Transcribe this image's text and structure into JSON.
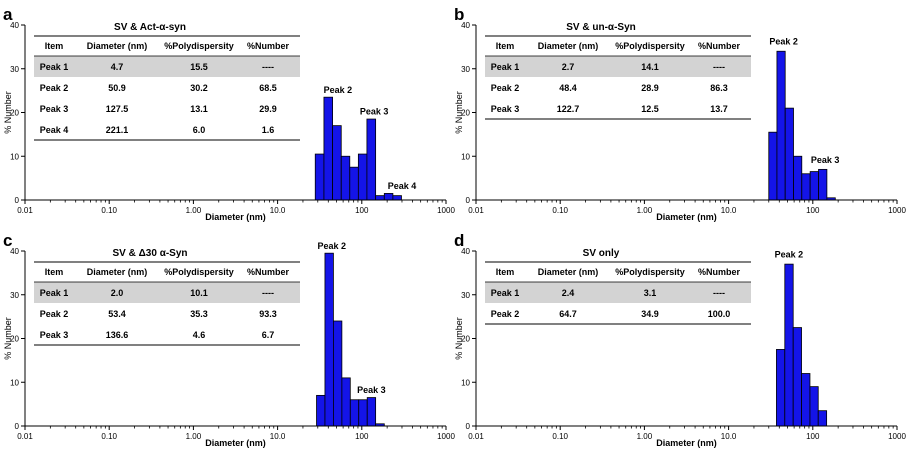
{
  "figure": {
    "axis": {
      "xlabel": "Diameter (nm)",
      "ylabel": "% Number",
      "xscale": "log",
      "xlim": [
        0.01,
        1000
      ],
      "ylim": [
        0,
        40
      ],
      "x_ticks": [
        "0.01",
        "0.10",
        "1.00",
        "10.0",
        "100",
        "1000"
      ],
      "y_ticks": [
        "0",
        "10",
        "20",
        "30",
        "40"
      ]
    },
    "colors": {
      "bar_fill": "#1414e8",
      "bar_stroke": "#000000",
      "table_header_row": "#d3d3d3",
      "axis": "#000000"
    }
  },
  "chart_data": [
    {
      "panel": "a",
      "type": "bar",
      "title": "SV & Act-α-syn",
      "xlabel": "Diameter (nm)",
      "ylabel": "% Number",
      "xscale": "log",
      "xlim": [
        0.01,
        1000
      ],
      "ylim": [
        0,
        40
      ],
      "bins": [
        {
          "x0": 28.0,
          "x1": 35.5,
          "y": 10.5
        },
        {
          "x0": 35.5,
          "x1": 45.0,
          "y": 23.5
        },
        {
          "x0": 45.0,
          "x1": 57.0,
          "y": 17.0
        },
        {
          "x0": 57.0,
          "x1": 72.0,
          "y": 10.0
        },
        {
          "x0": 72.0,
          "x1": 91.0,
          "y": 7.5
        },
        {
          "x0": 91.0,
          "x1": 115.0,
          "y": 10.5
        },
        {
          "x0": 115.0,
          "x1": 146.0,
          "y": 18.5
        },
        {
          "x0": 146.0,
          "x1": 185.0,
          "y": 1.0
        },
        {
          "x0": 185.0,
          "x1": 234.0,
          "y": 1.5
        },
        {
          "x0": 234.0,
          "x1": 296.0,
          "y": 1.0
        }
      ],
      "annotations": [
        {
          "text": "Peak 2",
          "x": 52,
          "y": 24.5
        },
        {
          "text": "Peak 3",
          "x": 140,
          "y": 19.5
        },
        {
          "text": "Peak 4",
          "x": 300,
          "y": 2.5
        }
      ],
      "table": {
        "headers": [
          "Item",
          "Diameter (nm)",
          "%Polydispersity",
          "%Number"
        ],
        "rows": [
          [
            "Peak 1",
            "4.7",
            "15.5",
            "----"
          ],
          [
            "Peak 2",
            "50.9",
            "30.2",
            "68.5"
          ],
          [
            "Peak 3",
            "127.5",
            "13.1",
            "29.9"
          ],
          [
            "Peak 4",
            "221.1",
            "6.0",
            "1.6"
          ]
        ]
      }
    },
    {
      "panel": "b",
      "type": "bar",
      "title": "SV & un-α-Syn",
      "xlabel": "Diameter (nm)",
      "ylabel": "% Number",
      "xscale": "log",
      "xlim": [
        0.01,
        1000
      ],
      "ylim": [
        0,
        40
      ],
      "bins": [
        {
          "x0": 30.0,
          "x1": 37.5,
          "y": 15.5
        },
        {
          "x0": 37.5,
          "x1": 47.0,
          "y": 34.0
        },
        {
          "x0": 47.0,
          "x1": 59.0,
          "y": 21.0
        },
        {
          "x0": 59.0,
          "x1": 74.0,
          "y": 10.0
        },
        {
          "x0": 74.0,
          "x1": 93.0,
          "y": 6.0
        },
        {
          "x0": 93.0,
          "x1": 117.0,
          "y": 6.5
        },
        {
          "x0": 117.0,
          "x1": 147.0,
          "y": 7.0
        },
        {
          "x0": 147.0,
          "x1": 185.0,
          "y": 0.5
        }
      ],
      "annotations": [
        {
          "text": "Peak 2",
          "x": 45,
          "y": 35.5
        },
        {
          "text": "Peak 3",
          "x": 140,
          "y": 8.5
        }
      ],
      "table": {
        "headers": [
          "Item",
          "Diameter (nm)",
          "%Polydispersity",
          "%Number"
        ],
        "rows": [
          [
            "Peak 1",
            "2.7",
            "14.1",
            "----"
          ],
          [
            "Peak 2",
            "48.4",
            "28.9",
            "86.3"
          ],
          [
            "Peak 3",
            "122.7",
            "12.5",
            "13.7"
          ]
        ]
      }
    },
    {
      "panel": "c",
      "type": "bar",
      "title": "SV & Δ30 α-Syn",
      "xlabel": "Diameter (nm)",
      "ylabel": "% Number",
      "xscale": "log",
      "xlim": [
        0.01,
        1000
      ],
      "ylim": [
        0,
        40
      ],
      "bins": [
        {
          "x0": 29.0,
          "x1": 36.5,
          "y": 7.0
        },
        {
          "x0": 36.5,
          "x1": 46.0,
          "y": 39.5
        },
        {
          "x0": 46.0,
          "x1": 58.0,
          "y": 24.0
        },
        {
          "x0": 58.0,
          "x1": 73.0,
          "y": 11.0
        },
        {
          "x0": 73.0,
          "x1": 92.0,
          "y": 6.0
        },
        {
          "x0": 92.0,
          "x1": 116.0,
          "y": 6.0
        },
        {
          "x0": 116.0,
          "x1": 146.0,
          "y": 6.5
        },
        {
          "x0": 146.0,
          "x1": 185.0,
          "y": 0.5
        }
      ],
      "annotations": [
        {
          "text": "Peak 2",
          "x": 44,
          "y": 40.5
        },
        {
          "text": "Peak 3",
          "x": 130,
          "y": 7.5
        }
      ],
      "table": {
        "headers": [
          "Item",
          "Diameter (nm)",
          "%Polydispersity",
          "%Number"
        ],
        "rows": [
          [
            "Peak 1",
            "2.0",
            "10.1",
            "----"
          ],
          [
            "Peak 2",
            "53.4",
            "35.3",
            "93.3"
          ],
          [
            "Peak 3",
            "136.6",
            "4.6",
            "6.7"
          ]
        ]
      }
    },
    {
      "panel": "d",
      "type": "bar",
      "title": "SV only",
      "xlabel": "Diameter (nm)",
      "ylabel": "% Number",
      "xscale": "log",
      "xlim": [
        0.01,
        1000
      ],
      "ylim": [
        0,
        40
      ],
      "bins": [
        {
          "x0": 37.0,
          "x1": 46.5,
          "y": 17.5
        },
        {
          "x0": 46.5,
          "x1": 58.5,
          "y": 37.0
        },
        {
          "x0": 58.5,
          "x1": 73.5,
          "y": 22.5
        },
        {
          "x0": 73.5,
          "x1": 92.5,
          "y": 12.0
        },
        {
          "x0": 92.5,
          "x1": 116.0,
          "y": 9.0
        },
        {
          "x0": 116.0,
          "x1": 146.0,
          "y": 3.5
        }
      ],
      "annotations": [
        {
          "text": "Peak 2",
          "x": 52,
          "y": 38.5
        }
      ],
      "table": {
        "headers": [
          "Item",
          "Diameter (nm)",
          "%Polydispersity",
          "%Number"
        ],
        "rows": [
          [
            "Peak 1",
            "2.4",
            "3.1",
            "----"
          ],
          [
            "Peak 2",
            "64.7",
            "34.9",
            "100.0"
          ]
        ]
      }
    }
  ]
}
